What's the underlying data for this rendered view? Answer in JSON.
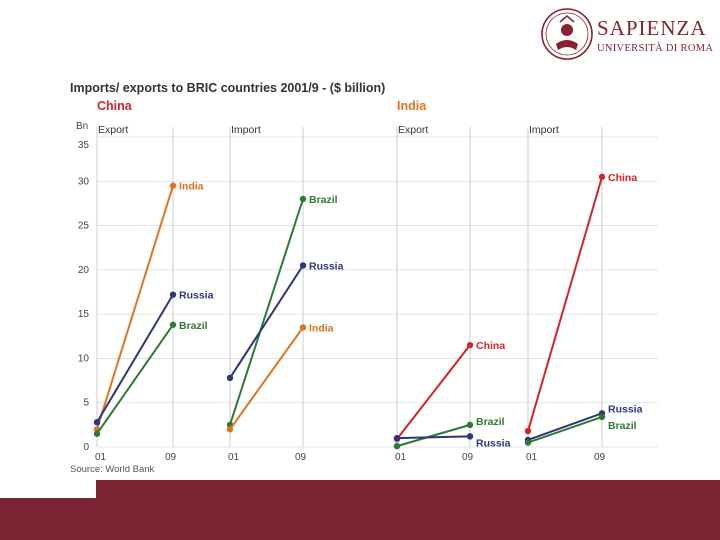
{
  "logo": {
    "title": "SAPIENZA",
    "subtitle": "UNIVERSITÀ DI ROMA",
    "color": "#8a1f2e"
  },
  "chart_data": {
    "type": "line",
    "title": "Imports/ exports to BRIC countries 2001/9 - ($ billion)",
    "unit_label": "Bn",
    "source": "Source: World Bank",
    "ylim": [
      0,
      35
    ],
    "yticks": [
      0,
      5,
      10,
      15,
      20,
      25,
      30,
      35
    ],
    "x_categories": [
      "01",
      "09"
    ],
    "colors": {
      "Brazil": "#2d7a33",
      "Russia": "#2e3580",
      "India": "#e0731f",
      "China": "#d42427"
    },
    "groups": [
      {
        "country": "China",
        "color": "#d42427",
        "panels": [
          {
            "label": "Export",
            "series": [
              {
                "name": "India",
                "values": [
                  2.0,
                  29.5
                ],
                "label": "India"
              },
              {
                "name": "Russia",
                "values": [
                  2.8,
                  17.2
                ],
                "label": "Russia"
              },
              {
                "name": "Brazil",
                "values": [
                  1.5,
                  13.8
                ],
                "label": "Brazil"
              }
            ]
          },
          {
            "label": "Import",
            "series": [
              {
                "name": "Brazil",
                "values": [
                  2.5,
                  28.0
                ],
                "label": "Brazil"
              },
              {
                "name": "Russia",
                "values": [
                  7.8,
                  20.5
                ],
                "label": "Russia"
              },
              {
                "name": "India",
                "values": [
                  2.0,
                  13.5
                ],
                "label": "India"
              }
            ]
          }
        ]
      },
      {
        "country": "India",
        "color": "#e0731f",
        "panels": [
          {
            "label": "Export",
            "series": [
              {
                "name": "China",
                "values": [
                  0.9,
                  11.5
                ],
                "label": "China"
              },
              {
                "name": "Brazil",
                "values": [
                  0.1,
                  2.5
                ],
                "label": "Brazil"
              },
              {
                "name": "Russia",
                "values": [
                  1.0,
                  1.2
                ],
                "label": "Russia"
              }
            ]
          },
          {
            "label": "Import",
            "series": [
              {
                "name": "China",
                "values": [
                  1.8,
                  30.5
                ],
                "label": "China"
              },
              {
                "name": "Russia",
                "values": [
                  0.8,
                  3.8
                ],
                "label": "Russia"
              },
              {
                "name": "Brazil",
                "values": [
                  0.5,
                  3.4
                ],
                "label": "Brazil"
              }
            ]
          }
        ]
      }
    ]
  }
}
